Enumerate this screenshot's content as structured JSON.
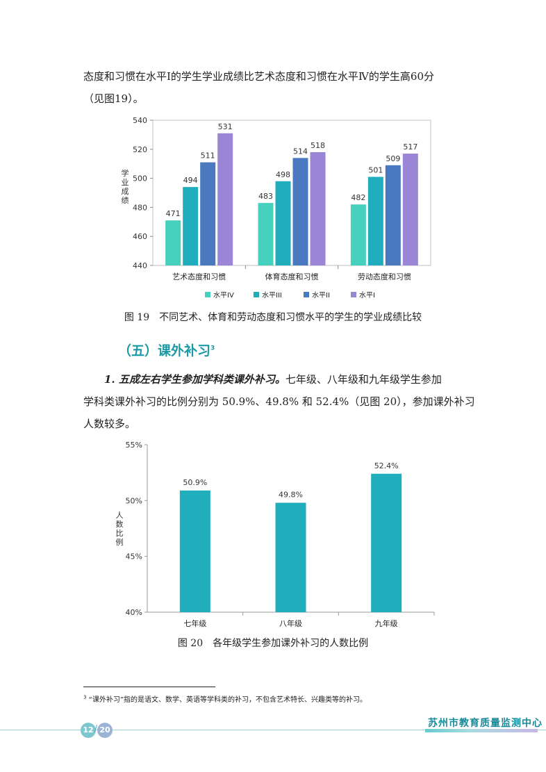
{
  "intro": {
    "line1": "态度和习惯在水平Ⅰ的学生学业成绩比艺术态度和习惯在水平Ⅳ的学生高60分",
    "line2": "（见图19）。"
  },
  "figure19": {
    "caption": "图 19　不同艺术、体育和劳动态度和习惯水平的学生的学业成绩比较",
    "chart_data": {
      "type": "bar",
      "ylabel": "学业成绩",
      "ylim": [
        440,
        540
      ],
      "yticks": [
        "440",
        "460",
        "480",
        "500",
        "520",
        "540"
      ],
      "categories": [
        "艺术态度和习惯",
        "体育态度和习惯",
        "劳动态度和习惯"
      ],
      "series": [
        {
          "name": "水平IV",
          "values": [
            471,
            483,
            482
          ],
          "color": "#45d1bd"
        },
        {
          "name": "水平III",
          "values": [
            494,
            498,
            501
          ],
          "color": "#21aebc"
        },
        {
          "name": "水平II",
          "values": [
            511,
            514,
            509
          ],
          "color": "#4b79bf"
        },
        {
          "name": "水平I",
          "values": [
            531,
            518,
            517
          ],
          "color": "#9b85d6"
        }
      ],
      "legend": "bottom"
    }
  },
  "section5": {
    "heading": "（五）课外补习",
    "heading_note": "3",
    "p1_lead": "1. 五成左右学生参加学科类课外补习。",
    "p1_rest": "七年级、八年级和九年级学生参加",
    "p1_line2": "学科类课外补习的比例分别为 50.9%、49.8% 和 52.4%（见图 20），参加课外补习",
    "p1_line3": "人数较多。"
  },
  "figure20": {
    "caption": "图 20　各年级学生参加课外补习的人数比例",
    "chart_data": {
      "type": "bar",
      "ylabel": "人数比例",
      "ylim": [
        40,
        55
      ],
      "yticks": [
        "40%",
        "45%",
        "50%",
        "55%"
      ],
      "categories": [
        "七年级",
        "八年级",
        "九年级"
      ],
      "values": [
        50.9,
        49.8,
        52.4
      ],
      "labels": [
        "50.9%",
        "49.8%",
        "52.4%"
      ],
      "color": "#21aebc"
    }
  },
  "footnote": {
    "mark": "3",
    "text": "“课外补习”指的是语文、数学、英语等学科类的补习，不包含艺术特长、兴趣类等的补习。"
  },
  "footer": {
    "page_current": "12",
    "page_total": "20",
    "brand": "苏州市教育质量监测中心"
  }
}
